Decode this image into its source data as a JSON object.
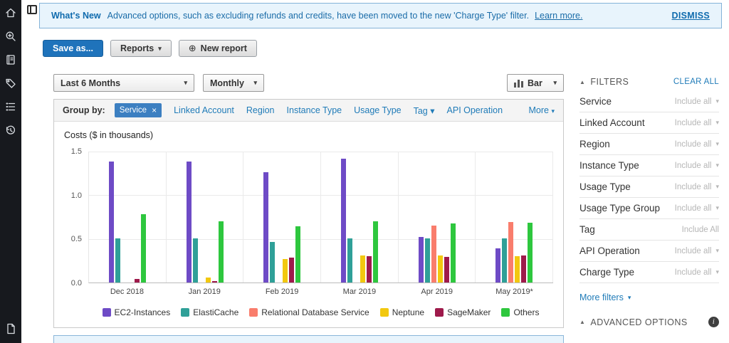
{
  "sidebar": {
    "icons": [
      "home",
      "search-plus",
      "journal",
      "tag",
      "list",
      "history",
      "document"
    ]
  },
  "banner": {
    "title": "What's New",
    "message": "Advanced options, such as excluding refunds and credits, have been moved to the new 'Charge Type' filter.",
    "learn_more": "Learn more.",
    "dismiss": "DISMISS"
  },
  "toolbar": {
    "save_as": "Save as...",
    "reports": "Reports",
    "new_report": "New report"
  },
  "controls": {
    "date_range": "Last 6 Months",
    "granularity": "Monthly",
    "chart_type": "Bar"
  },
  "group_by": {
    "label": "Group by:",
    "active_chip": "Service",
    "links": [
      {
        "label": "Linked Account",
        "caret": false
      },
      {
        "label": "Region",
        "caret": false
      },
      {
        "label": "Instance Type",
        "caret": false
      },
      {
        "label": "Usage Type",
        "caret": false
      },
      {
        "label": "Tag",
        "caret": true
      },
      {
        "label": "API Operation",
        "caret": false
      }
    ],
    "more": "More"
  },
  "chart_data": {
    "type": "bar",
    "title": "Costs ($ in thousands)",
    "categories": [
      "Dec 2018",
      "Jan 2019",
      "Feb 2019",
      "Mar 2019",
      "Apr 2019",
      "May 2019*"
    ],
    "series": [
      {
        "name": "EC2-Instances",
        "color": "#6e4bc6",
        "values": [
          1.38,
          1.38,
          1.26,
          1.41,
          0.52,
          0.39
        ]
      },
      {
        "name": "ElastiCache",
        "color": "#2fa098",
        "values": [
          0.5,
          0.5,
          0.46,
          0.5,
          0.5,
          0.5
        ]
      },
      {
        "name": "Relational Database Service",
        "color": "#f97d6c",
        "values": [
          0,
          0,
          0,
          0,
          0.65,
          0.69
        ]
      },
      {
        "name": "Neptune",
        "color": "#f2c80f",
        "values": [
          0,
          0.06,
          0.27,
          0.31,
          0.31,
          0.3
        ]
      },
      {
        "name": "SageMaker",
        "color": "#9e1a4b",
        "values": [
          0.04,
          0.02,
          0.28,
          0.3,
          0.29,
          0.31
        ]
      },
      {
        "name": "Others",
        "color": "#2ec73e",
        "values": [
          0.78,
          0.7,
          0.64,
          0.7,
          0.67,
          0.68
        ]
      }
    ],
    "ylim": [
      0,
      1.5
    ],
    "yticks": [
      0,
      0.5,
      1.0,
      1.5
    ],
    "grid": true,
    "legend_position": "bottom"
  },
  "filters": {
    "header": "FILTERS",
    "clear_all": "CLEAR ALL",
    "items": [
      {
        "label": "Service",
        "value": "Include all",
        "caret": true
      },
      {
        "label": "Linked Account",
        "value": "Include all",
        "caret": true
      },
      {
        "label": "Region",
        "value": "Include all",
        "caret": true
      },
      {
        "label": "Instance Type",
        "value": "Include all",
        "caret": true
      },
      {
        "label": "Usage Type",
        "value": "Include all",
        "caret": true
      },
      {
        "label": "Usage Type Group",
        "value": "Include all",
        "caret": true
      },
      {
        "label": "Tag",
        "value": "Include All",
        "caret": false
      },
      {
        "label": "API Operation",
        "value": "Include all",
        "caret": true
      },
      {
        "label": "Charge Type",
        "value": "Include all",
        "caret": true
      }
    ],
    "more_filters": "More filters",
    "advanced_options": "ADVANCED OPTIONS"
  }
}
